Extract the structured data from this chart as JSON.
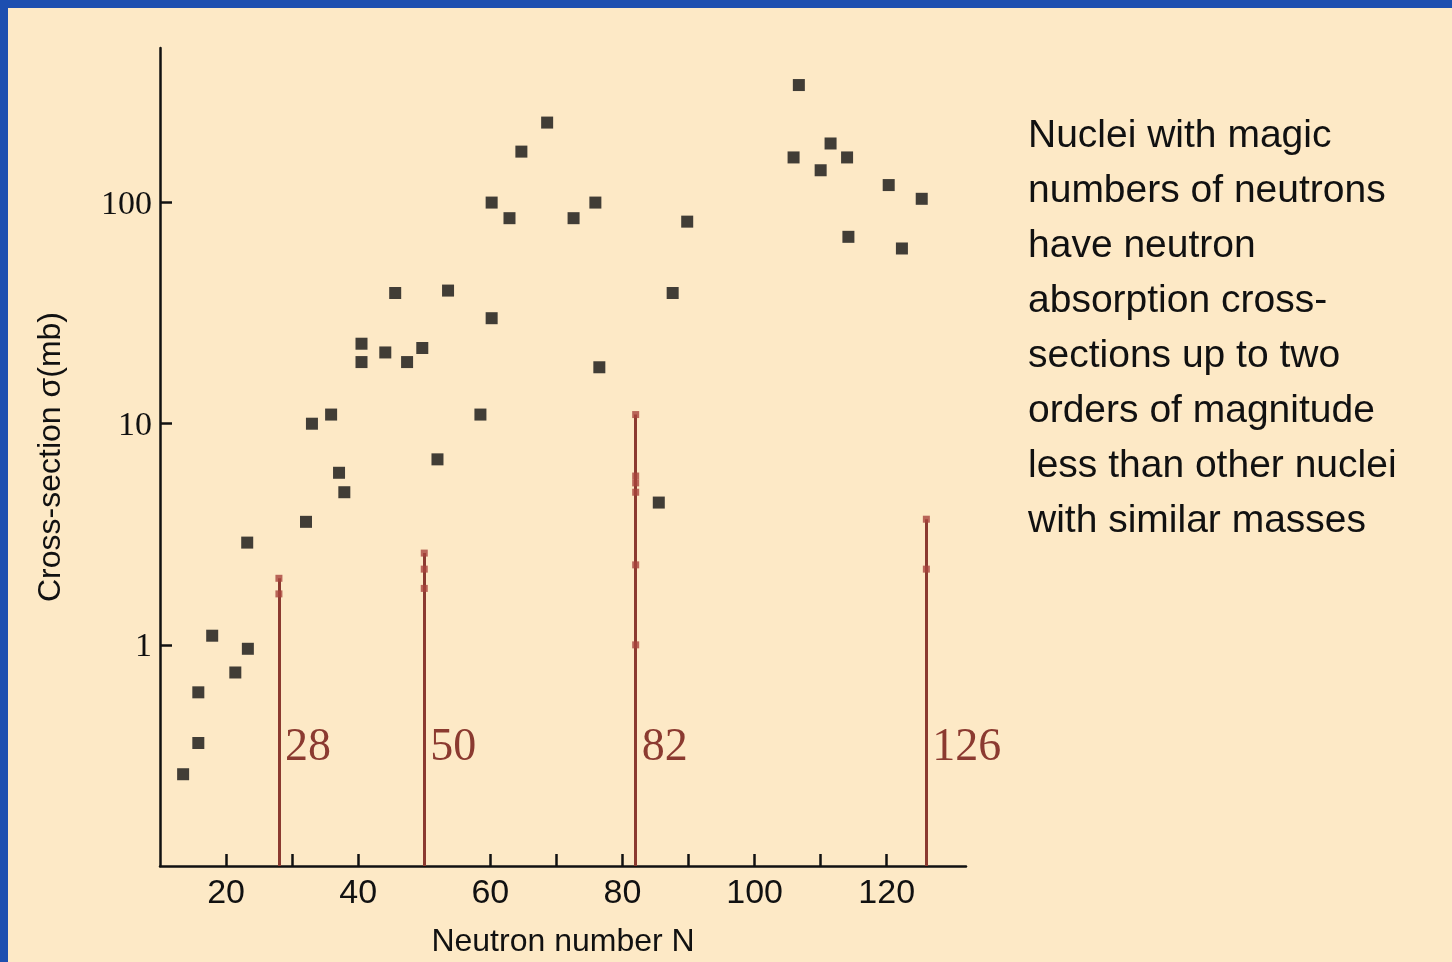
{
  "chart_data": {
    "type": "scatter",
    "xlabel": "Neutron number N",
    "ylabel": "Cross-section σ(mb)",
    "xlim": [
      10,
      132
    ],
    "xticks": [
      20,
      {
        "value": 30,
        "label": null
      },
      40,
      {
        "value": 50,
        "label": null
      },
      60,
      {
        "value": 70,
        "label": null
      },
      80,
      {
        "value": 90,
        "label": null
      },
      100,
      {
        "value": 110,
        "label": null
      },
      120
    ],
    "ylim": [
      0.1,
      500
    ],
    "yticks": [
      1,
      10,
      100
    ],
    "log": "y",
    "grid": false,
    "marker": "square",
    "series": [
      {
        "color": "#111111",
        "x": [
          13.5,
          15.8,
          15.8,
          17.9,
          21.4,
          23.3,
          23.2,
          32.1,
          33,
          35.9,
          37.1,
          37.9,
          40.5,
          40.5,
          44.1,
          45.6,
          47.4,
          49.7,
          52,
          53.6,
          58.5,
          60.2,
          60.2,
          62.9,
          64.7,
          68.6,
          72.6,
          75.9,
          76.5,
          85.5,
          87.6,
          89.8,
          106.7,
          105.9,
          110,
          111.5,
          114,
          114.2,
          120.3,
          122.3,
          125.3
        ],
        "values": [
          0.26,
          0.36,
          0.61,
          1.1,
          0.75,
          0.96,
          2.9,
          3.6,
          10,
          11,
          6,
          4.9,
          23,
          19,
          21,
          39,
          19,
          22,
          6.9,
          40,
          11,
          30,
          100,
          85,
          170,
          230,
          85,
          100,
          18,
          4.4,
          39,
          82,
          340,
          160,
          140,
          185,
          160,
          70,
          120,
          62,
          104
        ]
      },
      {
        "color": "#a8433c",
        "x": [
          28,
          28,
          50,
          50,
          50,
          82,
          82,
          82,
          82,
          82,
          82,
          126,
          126
        ],
        "values": [
          2,
          1.7,
          2.6,
          2.2,
          1.8,
          11,
          5.8,
          5.4,
          4.9,
          2.3,
          1,
          3.7,
          2.2
        ]
      }
    ],
    "ref_lines": [
      {
        "axis": "x",
        "value": 28,
        "label": "28",
        "color": "#8b3a30"
      },
      {
        "axis": "x",
        "value": 50,
        "label": "50",
        "color": "#8b3a30"
      },
      {
        "axis": "x",
        "value": 82,
        "label": "82",
        "color": "#8b3a30"
      },
      {
        "axis": "x",
        "value": 126,
        "label": "126",
        "color": "#8b3a30"
      }
    ],
    "annotations": [
      "Nuclei with magic numbers of neutrons have neutron absorption cross-sections up to two orders of magnitude less than other nuclei with similar masses"
    ]
  }
}
